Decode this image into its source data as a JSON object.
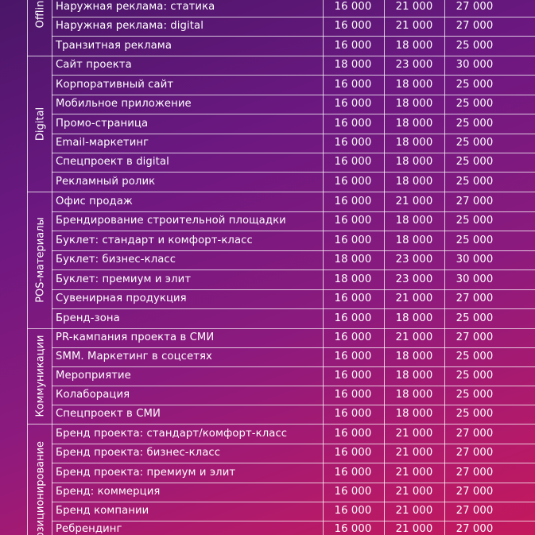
{
  "sections": [
    {
      "name": "Offline",
      "rows": [
        {
          "label": "Наружная реклама: статика",
          "v1": "16 000",
          "v2": "21 000",
          "v3": "27 000"
        },
        {
          "label": "Наружная реклама: digital",
          "v1": "16 000",
          "v2": "21 000",
          "v3": "27 000"
        },
        {
          "label": "Транзитная реклама",
          "v1": "16 000",
          "v2": "18 000",
          "v3": "25 000"
        }
      ]
    },
    {
      "name": "Digital",
      "rows": [
        {
          "label": "Сайт проекта",
          "v1": "18 000",
          "v2": "23 000",
          "v3": "30 000"
        },
        {
          "label": "Корпоративный сайт",
          "v1": "16 000",
          "v2": "18 000",
          "v3": "25 000"
        },
        {
          "label": "Мобильное приложение",
          "v1": "16 000",
          "v2": "18 000",
          "v3": "25 000"
        },
        {
          "label": "Промо-страница",
          "v1": "16 000",
          "v2": "18 000",
          "v3": "25 000"
        },
        {
          "label": "Email-маркетинг",
          "v1": "16 000",
          "v2": "18 000",
          "v3": "25 000"
        },
        {
          "label": "Спецпроект в digital",
          "v1": "16 000",
          "v2": "18 000",
          "v3": "25 000"
        },
        {
          "label": "Рекламный ролик",
          "v1": "16 000",
          "v2": "18 000",
          "v3": "25 000"
        }
      ]
    },
    {
      "name": "POS-материалы",
      "rows": [
        {
          "label": "Офис продаж",
          "v1": "16 000",
          "v2": "21 000",
          "v3": "27 000"
        },
        {
          "label": "Брендирование строительной площадки",
          "v1": "16 000",
          "v2": "18 000",
          "v3": "25 000"
        },
        {
          "label": "Буклет: стандарт и комфорт-класс",
          "v1": "16 000",
          "v2": "18 000",
          "v3": "25 000"
        },
        {
          "label": "Буклет: бизнес-класс",
          "v1": "18 000",
          "v2": "23 000",
          "v3": "30 000"
        },
        {
          "label": "Буклет: премиум и элит",
          "v1": "18 000",
          "v2": "23 000",
          "v3": "30 000"
        },
        {
          "label": "Сувенирная продукция",
          "v1": "16 000",
          "v2": "21 000",
          "v3": "27 000"
        },
        {
          "label": "Бренд-зона",
          "v1": "16 000",
          "v2": "18 000",
          "v3": "25 000"
        }
      ]
    },
    {
      "name": "Коммуникации",
      "rows": [
        {
          "label": "PR-кампания проекта в СМИ",
          "v1": "16 000",
          "v2": "21 000",
          "v3": "27 000"
        },
        {
          "label": "SMM. Маркетинг в соцсетях",
          "v1": "16 000",
          "v2": "18 000",
          "v3": "25 000"
        },
        {
          "label": "Мероприятие",
          "v1": "16 000",
          "v2": "18 000",
          "v3": "25 000"
        },
        {
          "label": "Колаборация",
          "v1": "16 000",
          "v2": "18 000",
          "v3": "25 000"
        },
        {
          "label": "Спецпроект в СМИ",
          "v1": "16 000",
          "v2": "18 000",
          "v3": "25 000"
        }
      ]
    },
    {
      "name": "Позиционирование",
      "rows": [
        {
          "label": "Бренд проекта: стандарт/комфорт-класс",
          "v1": "16 000",
          "v2": "21 000",
          "v3": "27 000"
        },
        {
          "label": "Бренд проекта: бизнес-класс",
          "v1": "16 000",
          "v2": "21 000",
          "v3": "27 000"
        },
        {
          "label": "Бренд проекта: премиум и элит",
          "v1": "16 000",
          "v2": "21 000",
          "v3": "27 000"
        },
        {
          "label": "Бренд: коммерция",
          "v1": "16 000",
          "v2": "21 000",
          "v3": "27 000"
        },
        {
          "label": "Бренд компании",
          "v1": "16 000",
          "v2": "21 000",
          "v3": "27 000"
        },
        {
          "label": "Ребрендинг",
          "v1": "16 000",
          "v2": "21 000",
          "v3": "27 000"
        }
      ]
    }
  ]
}
